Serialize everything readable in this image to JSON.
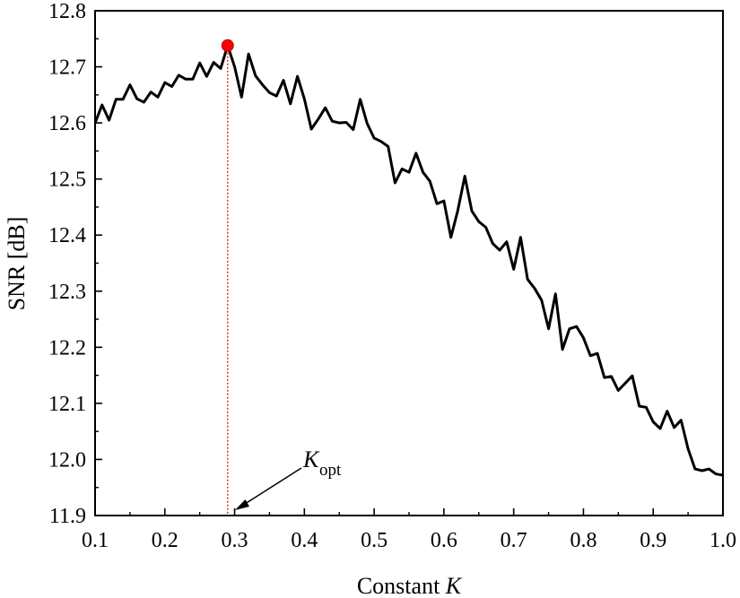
{
  "chart_data": {
    "type": "line",
    "title": "",
    "xlabel": "Constant",
    "xlabel_var": "K",
    "ylabel": "SNR [dB]",
    "xlim": [
      0.1,
      1.0
    ],
    "ylim": [
      11.9,
      12.8
    ],
    "x_ticks": [
      "0.1",
      "0.2",
      "0.3",
      "0.4",
      "0.5",
      "0.6",
      "0.7",
      "0.8",
      "0.9",
      "1.0"
    ],
    "y_ticks": [
      "11.9",
      "12.0",
      "12.1",
      "12.2",
      "12.3",
      "12.4",
      "12.5",
      "12.6",
      "12.7",
      "12.8"
    ],
    "grid": false,
    "legend": "none",
    "colors": {
      "line": "#000000",
      "marker": "#ff0000",
      "guide": "#e02020"
    },
    "series": [
      {
        "x": [
          0.1,
          0.11,
          0.12,
          0.13,
          0.14,
          0.15,
          0.16,
          0.17,
          0.18,
          0.19,
          0.2,
          0.21,
          0.22,
          0.23,
          0.24,
          0.25,
          0.26,
          0.27,
          0.28,
          0.29,
          0.3,
          0.31,
          0.32,
          0.33,
          0.34,
          0.35,
          0.36,
          0.37,
          0.38,
          0.39,
          0.4,
          0.41,
          0.42,
          0.43,
          0.44,
          0.45,
          0.46,
          0.47,
          0.48,
          0.49,
          0.5,
          0.51,
          0.52,
          0.53,
          0.54,
          0.55,
          0.56,
          0.57,
          0.58,
          0.59,
          0.6,
          0.61,
          0.62,
          0.63,
          0.64,
          0.65,
          0.66,
          0.67,
          0.68,
          0.69,
          0.7,
          0.71,
          0.72,
          0.73,
          0.74,
          0.75,
          0.76,
          0.77,
          0.78,
          0.79,
          0.8,
          0.81,
          0.82,
          0.83,
          0.84,
          0.85,
          0.86,
          0.87,
          0.88,
          0.89,
          0.9,
          0.91,
          0.92,
          0.93,
          0.94,
          0.95,
          0.96,
          0.97,
          0.98,
          0.99,
          1.0
        ],
        "values": [
          12.6,
          12.632,
          12.605,
          12.642,
          12.642,
          12.668,
          12.643,
          12.637,
          12.655,
          12.646,
          12.672,
          12.665,
          12.685,
          12.678,
          12.678,
          12.707,
          12.683,
          12.708,
          12.697,
          12.738,
          12.7,
          12.646,
          12.723,
          12.684,
          12.668,
          12.654,
          12.648,
          12.676,
          12.634,
          12.683,
          12.643,
          12.589,
          12.607,
          12.627,
          12.603,
          12.6,
          12.601,
          12.588,
          12.642,
          12.599,
          12.573,
          12.567,
          12.558,
          12.493,
          12.518,
          12.512,
          12.546,
          12.512,
          12.496,
          12.456,
          12.461,
          12.396,
          12.444,
          12.505,
          12.443,
          12.424,
          12.414,
          12.385,
          12.373,
          12.388,
          12.339,
          12.396,
          12.321,
          12.305,
          12.284,
          12.233,
          12.295,
          12.196,
          12.233,
          12.237,
          12.217,
          12.185,
          12.189,
          12.146,
          12.148,
          12.123,
          12.136,
          12.149,
          12.095,
          12.093,
          12.067,
          12.055,
          12.086,
          12.057,
          12.07,
          12.019,
          11.983,
          11.98,
          11.983,
          11.974,
          11.972
        ]
      }
    ],
    "optimum": {
      "x": 0.29,
      "y": 12.738
    },
    "annotation": {
      "symbol": "K",
      "subscript": "opt"
    }
  }
}
